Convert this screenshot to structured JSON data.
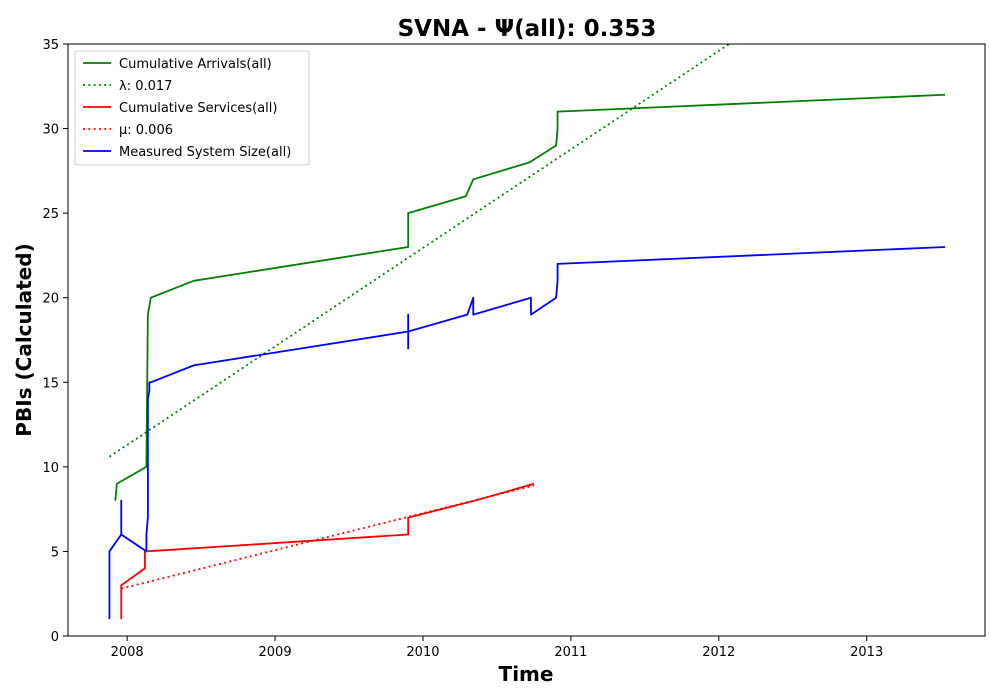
{
  "chart_data": {
    "type": "line",
    "title": "SVNA -  Ψ(all): 0.353",
    "xlabel": "Time",
    "ylabel": "PBIs (Calculated)",
    "xlim": [
      2007.6,
      2013.8
    ],
    "ylim": [
      0,
      35
    ],
    "x_ticks": [
      2008,
      2009,
      2010,
      2011,
      2012,
      2013
    ],
    "x_tick_labels": [
      "2008",
      "2009",
      "2010",
      "2011",
      "2012",
      "2013"
    ],
    "y_ticks": [
      0,
      5,
      10,
      15,
      20,
      25,
      30,
      35
    ],
    "y_tick_labels": [
      "0",
      "5",
      "10",
      "15",
      "20",
      "25",
      "30",
      "35"
    ],
    "grid": false,
    "legend_position": "top-left",
    "series": [
      {
        "name": "Cumulative Arrivals(all)",
        "color": "#008000",
        "style": "solid",
        "x": [
          2007.92,
          2007.93,
          2008.13,
          2008.14,
          2008.15,
          2008.16,
          2008.45,
          2009.9,
          2009.9,
          2010.29,
          2010.34,
          2010.72,
          2010.9,
          2010.91,
          2010.91,
          2013.53
        ],
        "y": [
          8,
          9,
          10,
          19,
          19.5,
          20,
          21,
          23,
          25,
          26,
          27,
          28,
          29,
          30,
          31,
          32
        ]
      },
      {
        "name": "λ: 0.017",
        "color": "#008000",
        "style": "dotted",
        "x": [
          2007.88,
          2012.07
        ],
        "y": [
          10.6,
          35
        ]
      },
      {
        "name": "Cumulative Services(all)",
        "color": "#ff0000",
        "style": "solid",
        "x": [
          2007.96,
          2007.96,
          2008.12,
          2008.12,
          2009.9,
          2009.9,
          2010.35,
          2010.75
        ],
        "y": [
          1,
          3,
          4,
          5,
          6,
          7,
          8,
          9
        ]
      },
      {
        "name": "μ: 0.006",
        "color": "#ff0000",
        "style": "dotted",
        "x": [
          2007.96,
          2010.75
        ],
        "y": [
          2.8,
          8.9
        ]
      },
      {
        "name": "Measured System Size(all)",
        "color": "#0000ff",
        "style": "solid",
        "x": [
          2007.88,
          2007.88,
          2007.96,
          2007.96,
          2007.96,
          2008.13,
          2008.13,
          2008.14,
          2008.14,
          2008.15,
          2008.15,
          2008.16,
          2008.45,
          2009.9,
          2009.9,
          2009.9,
          2009.9,
          2010.3,
          2010.34,
          2010.34,
          2010.73,
          2010.73,
          2010.9,
          2010.91,
          2010.91,
          2013.53
        ],
        "y": [
          1,
          5,
          6,
          8,
          6,
          5,
          6,
          7,
          14,
          14.5,
          15,
          15,
          16,
          18,
          19,
          17,
          18,
          19,
          20,
          19,
          20,
          19,
          20,
          21,
          22,
          23
        ]
      }
    ]
  }
}
